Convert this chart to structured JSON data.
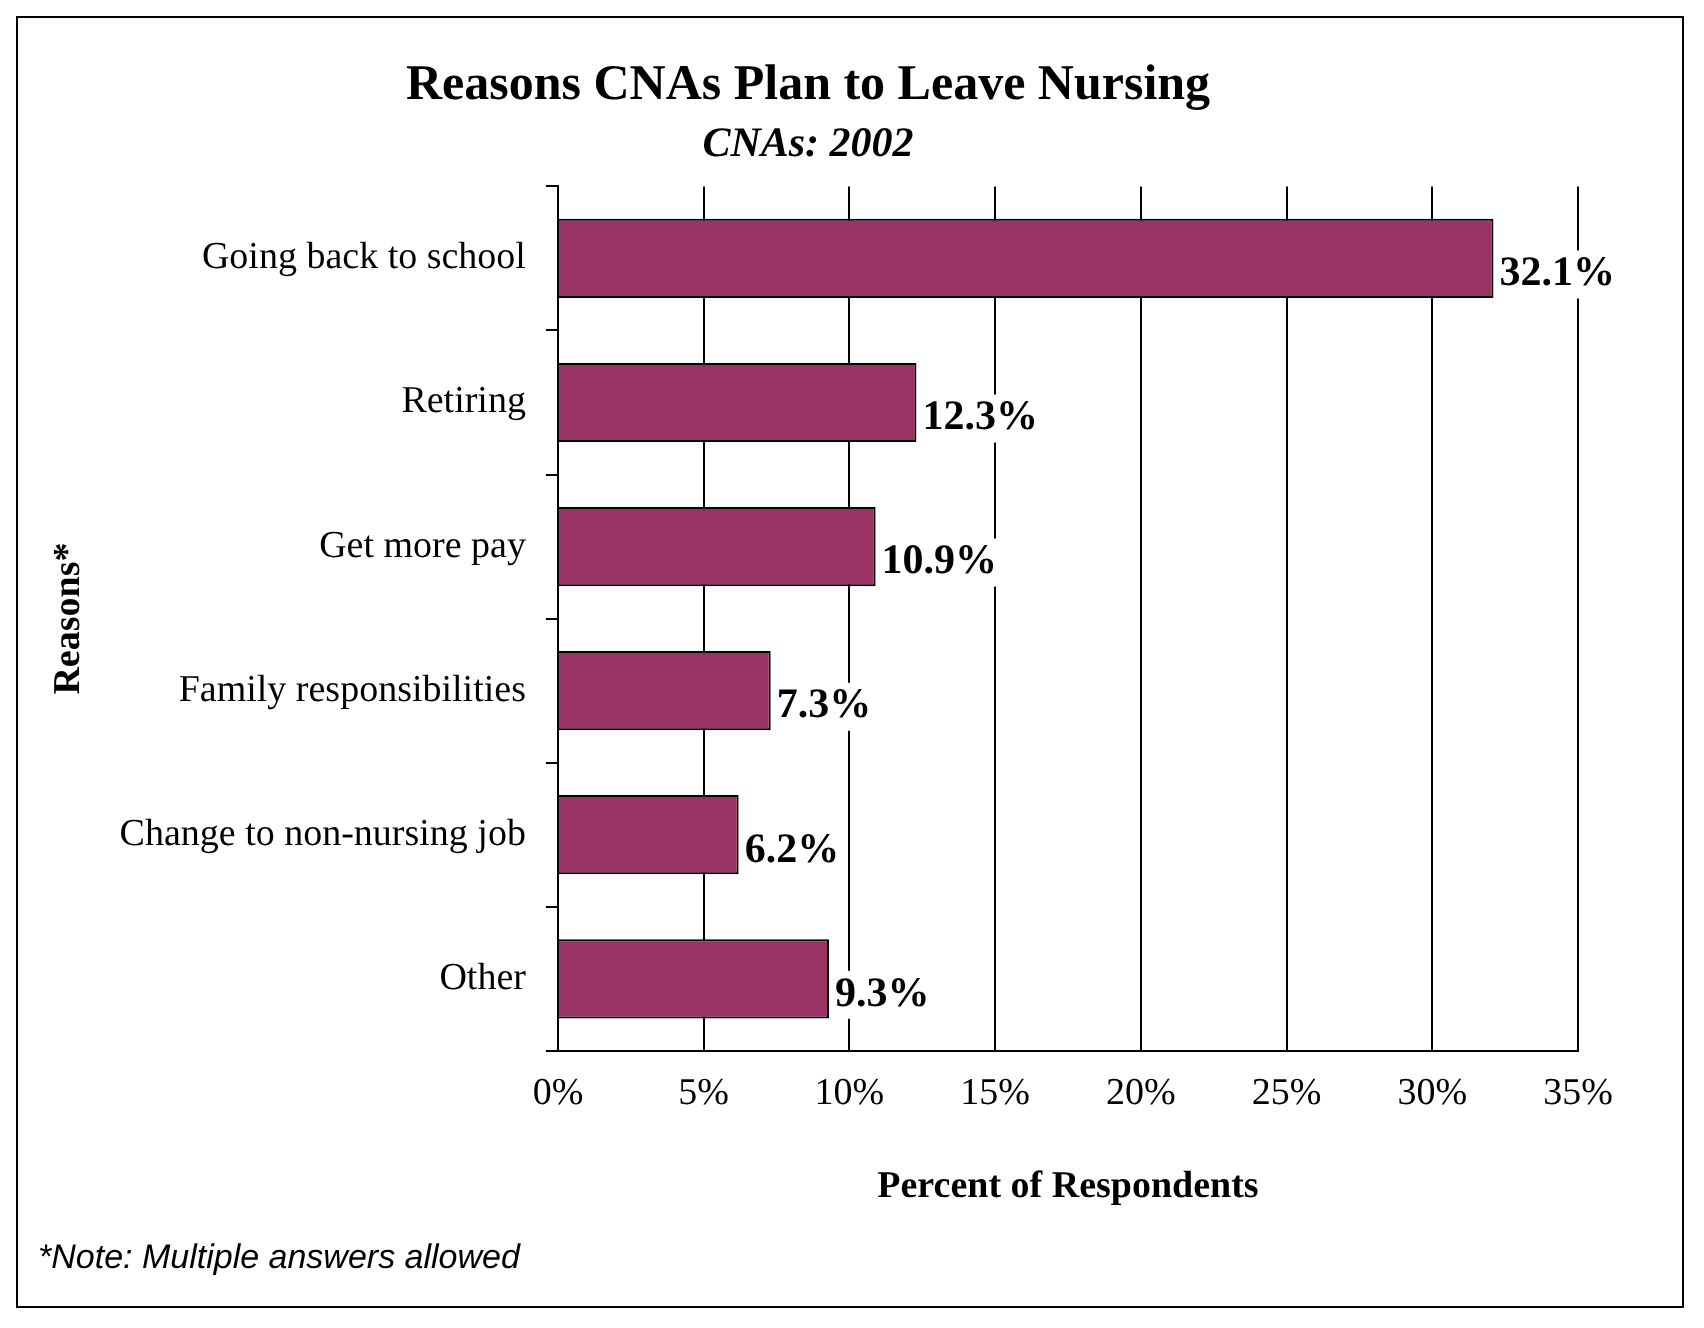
{
  "chart_data": {
    "type": "bar",
    "orientation": "horizontal",
    "title": "Reasons CNAs Plan to Leave Nursing",
    "subtitle": "CNAs: 2002",
    "xlabel": "Percent of Respondents",
    "ylabel": "Reasons*",
    "categories": [
      "Going back to school",
      "Retiring",
      "Get more pay",
      "Family responsibilities",
      "Change to non-nursing job",
      "Other"
    ],
    "values": [
      32.1,
      12.3,
      10.9,
      7.3,
      6.2,
      9.3
    ],
    "value_labels": [
      "32.1%",
      "12.3%",
      "10.9%",
      "7.3%",
      "6.2%",
      "9.3%"
    ],
    "color": "#993366",
    "xlim": [
      0,
      35
    ],
    "xticks": [
      {
        "value": 0,
        "label": "0%"
      },
      {
        "value": 5,
        "label": "5%"
      },
      {
        "value": 10,
        "label": "10%"
      },
      {
        "value": 15,
        "label": "15%"
      },
      {
        "value": 20,
        "label": "20%"
      },
      {
        "value": 25,
        "label": "25%"
      },
      {
        "value": 30,
        "label": "30%"
      },
      {
        "value": 35,
        "label": "35%"
      }
    ],
    "grid": "x",
    "annotations": [
      "*Note: Multiple answers allowed"
    ]
  }
}
